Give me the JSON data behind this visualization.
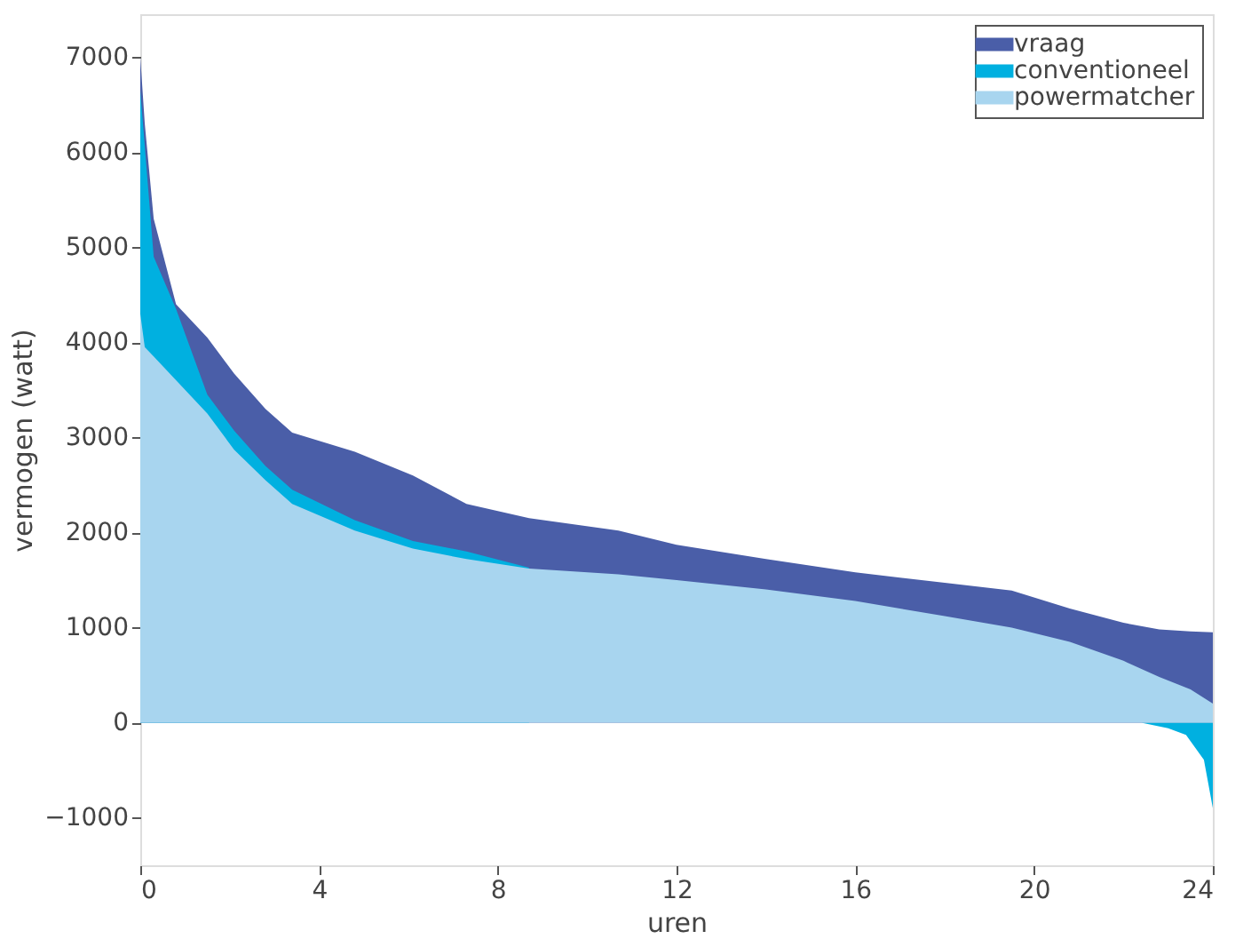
{
  "chart_data": {
    "type": "area",
    "xlabel": "uren",
    "ylabel": "vermogen (watt)",
    "xlim": [
      0,
      24
    ],
    "xticks": [
      0,
      4,
      8,
      12,
      16,
      20,
      24
    ],
    "ylim": [
      -1500,
      7450
    ],
    "yticks": [
      -1000,
      0,
      1000,
      2000,
      3000,
      4000,
      5000,
      6000,
      7000
    ],
    "grid": false,
    "legend": "top right",
    "series": [
      {
        "name": "vraag",
        "color": "#4a5ea8",
        "x": [
          0,
          0.1,
          0.3,
          0.8,
          1.5,
          2.1,
          2.8,
          3.4,
          4.8,
          6.1,
          7.3,
          8.7,
          10.7,
          12,
          14,
          16,
          18,
          19.5,
          20.8,
          22,
          22.8,
          23.5,
          24
        ],
        "values": [
          7000,
          6300,
          5300,
          4400,
          4050,
          3670,
          3300,
          3050,
          2850,
          2600,
          2300,
          2150,
          2020,
          1870,
          1720,
          1580,
          1470,
          1390,
          1200,
          1050,
          980,
          960,
          950
        ]
      },
      {
        "name": "conventioneel",
        "color": "#00b0e0",
        "x": [
          0,
          0.3,
          0.8,
          1.5,
          2.1,
          2.8,
          3.4,
          4.8,
          6.1,
          7.3,
          8.7,
          16,
          22.4,
          23,
          23.4,
          23.8,
          24
        ],
        "values": [
          6650,
          4900,
          4350,
          3450,
          3070,
          2700,
          2450,
          2130,
          1910,
          1800,
          1630,
          null,
          0,
          -60,
          -130,
          -390,
          -900
        ]
      },
      {
        "name": "powermatcher",
        "color": "#a8d5ef",
        "x": [
          0,
          0.1,
          0.3,
          0.8,
          1.5,
          2.1,
          2.8,
          3.4,
          4.8,
          6.1,
          7.3,
          8.7,
          10.7,
          12,
          14,
          16,
          18,
          19.5,
          20.8,
          22,
          22.8,
          23.5,
          24
        ],
        "values": [
          4300,
          3950,
          3850,
          3600,
          3250,
          2870,
          2550,
          2300,
          2020,
          1830,
          1720,
          1620,
          1560,
          1500,
          1400,
          1280,
          1120,
          1000,
          850,
          650,
          480,
          350,
          200
        ]
      }
    ]
  }
}
